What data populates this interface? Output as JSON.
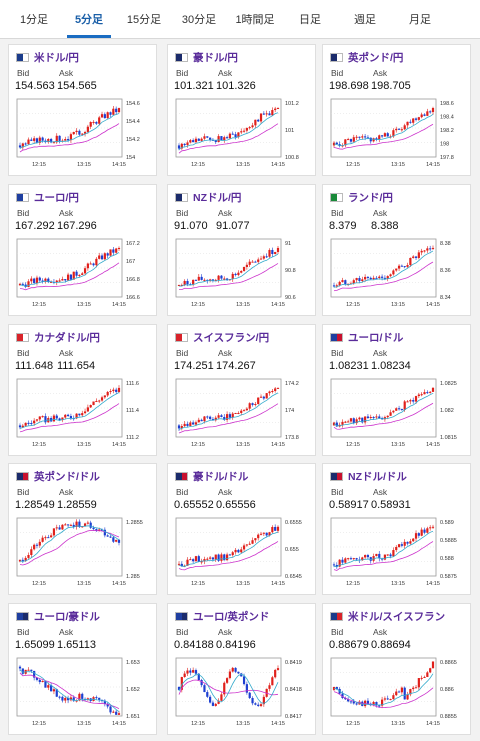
{
  "tabs": [
    {
      "label": "1分足"
    },
    {
      "label": "5分足"
    },
    {
      "label": "15分足"
    },
    {
      "label": "30分足"
    },
    {
      "label": "1時間足"
    },
    {
      "label": "日足"
    },
    {
      "label": "週足"
    },
    {
      "label": "月足"
    }
  ],
  "active_tab": 1,
  "colors": {
    "accent": "#1a6cc2",
    "pair_label": "#5a2c9a",
    "up": "#e0201b",
    "down": "#1d3fd1",
    "ma": "#cc33cc",
    "ma2": "#33aacc"
  },
  "labels": {
    "bid": "Bid",
    "ask": "Ask"
  },
  "cards": [
    {
      "pair": "米ドル/円",
      "bid": "154.563",
      "ask": "154.565",
      "flag": [
        "#1b3c8b",
        "#ffffff"
      ],
      "chart_data": {
        "type": "candlestick",
        "y_ticks": [
          "154.6",
          "154.4",
          "154.2",
          "154"
        ],
        "x_ticks": [
          "12:15",
          "13:15",
          "14:15"
        ],
        "trend": "up"
      }
    },
    {
      "pair": "豪ドル/円",
      "bid": "101.321",
      "ask": "101.326",
      "flag": [
        "#1b2b6b",
        "#ffffff"
      ],
      "chart_data": {
        "type": "candlestick",
        "y_ticks": [
          "101.2",
          "101",
          "100.8"
        ],
        "x_ticks": [
          "12:15",
          "13:15",
          "14:15"
        ],
        "trend": "up"
      }
    },
    {
      "pair": "英ポンド/円",
      "bid": "198.698",
      "ask": "198.705",
      "flag": [
        "#1b2b6b",
        "#ffffff"
      ],
      "chart_data": {
        "type": "candlestick",
        "y_ticks": [
          "198.6",
          "198.4",
          "198.2",
          "198",
          "197.8"
        ],
        "x_ticks": [
          "12:15",
          "13:15",
          "14:15"
        ],
        "trend": "up"
      }
    },
    {
      "pair": "ユーロ/円",
      "bid": "167.292",
      "ask": "167.296",
      "flag": [
        "#1f3fa0",
        "#ffffff"
      ],
      "chart_data": {
        "type": "candlestick",
        "y_ticks": [
          "167.2",
          "167",
          "166.8",
          "166.6"
        ],
        "x_ticks": [
          "12:15",
          "13:15",
          "14:15"
        ],
        "trend": "up"
      }
    },
    {
      "pair": "NZドル/円",
      "bid": "91.070",
      "ask": "91.077",
      "flag": [
        "#1b2b6b",
        "#ffffff"
      ],
      "chart_data": {
        "type": "candlestick",
        "y_ticks": [
          "91",
          "90.8",
          "90.6"
        ],
        "x_ticks": [
          "12:15",
          "13:15",
          "14:15"
        ],
        "trend": "up"
      }
    },
    {
      "pair": "ランド/円",
      "bid": "8.379",
      "ask": "8.388",
      "flag": [
        "#1a8a3a",
        "#ffffff"
      ],
      "chart_data": {
        "type": "candlestick",
        "y_ticks": [
          "8.38",
          "8.36",
          "8.34"
        ],
        "x_ticks": [
          "12:15",
          "13:15",
          "14:15"
        ],
        "trend": "up"
      }
    },
    {
      "pair": "カナダドル/円",
      "bid": "111.648",
      "ask": "111.654",
      "flag": [
        "#d8232a",
        "#ffffff"
      ],
      "chart_data": {
        "type": "candlestick",
        "y_ticks": [
          "111.6",
          "111.4",
          "111.2"
        ],
        "x_ticks": [
          "12:15",
          "13:15",
          "14:15"
        ],
        "trend": "up"
      }
    },
    {
      "pair": "スイスフラン/円",
      "bid": "174.251",
      "ask": "174.267",
      "flag": [
        "#d8232a",
        "#ffffff"
      ],
      "chart_data": {
        "type": "candlestick",
        "y_ticks": [
          "174.2",
          "174",
          "173.8"
        ],
        "x_ticks": [
          "12:15",
          "13:15",
          "14:15"
        ],
        "trend": "up"
      }
    },
    {
      "pair": "ユーロ/ドル",
      "bid": "1.08231",
      "ask": "1.08234",
      "flag": [
        "#1f3fa0",
        "#c8102e"
      ],
      "chart_data": {
        "type": "candlestick",
        "y_ticks": [
          "1.0825",
          "1.082",
          "1.0815"
        ],
        "x_ticks": [
          "12:15",
          "13:15",
          "14:15"
        ],
        "trend": "up"
      }
    },
    {
      "pair": "英ポンド/ドル",
      "bid": "1.28549",
      "ask": "1.28559",
      "flag": [
        "#1b2b6b",
        "#c8102e"
      ],
      "chart_data": {
        "type": "candlestick",
        "y_ticks": [
          "1.2855",
          "1.285"
        ],
        "x_ticks": [
          "12:15",
          "13:15",
          "14:15"
        ],
        "trend": "hump"
      }
    },
    {
      "pair": "豪ドル/ドル",
      "bid": "0.65552",
      "ask": "0.65556",
      "flag": [
        "#1b2b6b",
        "#c8102e"
      ],
      "chart_data": {
        "type": "candlestick",
        "y_ticks": [
          "0.6555",
          "0.655",
          "0.6545"
        ],
        "x_ticks": [
          "12:15",
          "13:15",
          "14:15"
        ],
        "trend": "up"
      }
    },
    {
      "pair": "NZドル/ドル",
      "bid": "0.58917",
      "ask": "0.58931",
      "flag": [
        "#1b2b6b",
        "#c8102e"
      ],
      "chart_data": {
        "type": "candlestick",
        "y_ticks": [
          "0.589",
          "0.5885",
          "0.588",
          "0.5875"
        ],
        "x_ticks": [
          "12:15",
          "13:15",
          "14:15"
        ],
        "trend": "up"
      }
    },
    {
      "pair": "ユーロ/豪ドル",
      "bid": "1.65099",
      "ask": "1.65113",
      "flag": [
        "#1f3fa0",
        "#1b2b6b"
      ],
      "chart_data": {
        "type": "candlestick",
        "y_ticks": [
          "1.653",
          "1.652",
          "1.651"
        ],
        "x_ticks": [
          "12:15",
          "13:15",
          "14:15"
        ],
        "trend": "down"
      }
    },
    {
      "pair": "ユーロ/英ポンド",
      "bid": "0.84188",
      "ask": "0.84196",
      "flag": [
        "#1f3fa0",
        "#1b2b6b"
      ],
      "chart_data": {
        "type": "candlestick",
        "y_ticks": [
          "0.8419",
          "0.8418",
          "0.8417"
        ],
        "x_ticks": [
          "12:15",
          "13:15",
          "14:15"
        ],
        "trend": "flat"
      }
    },
    {
      "pair": "米ドル/スイスフラン",
      "bid": "0.88679",
      "ask": "0.88694",
      "flag": [
        "#1b3c8b",
        "#d8232a"
      ],
      "chart_data": {
        "type": "candlestick",
        "y_ticks": [
          "0.8865",
          "0.886",
          "0.8855"
        ],
        "x_ticks": [
          "12:15",
          "13:15",
          "14:15"
        ],
        "trend": "dipup"
      }
    }
  ]
}
